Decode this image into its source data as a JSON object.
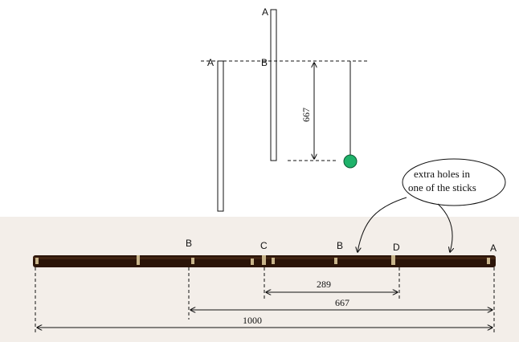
{
  "top_labels": {
    "a_top": "A",
    "a_left": "A",
    "b_mid": "B"
  },
  "dimension_vertical": "667",
  "callout": {
    "line1": "extra holes in",
    "line2": "one of the sticks"
  },
  "stick_labels": {
    "b1": "B",
    "c": "C",
    "b2": "B",
    "d": "D",
    "a": "A"
  },
  "dimensions": {
    "d289": "289",
    "d667": "667",
    "d1000": "1000"
  },
  "colors": {
    "bob": "#1fb26a",
    "stick": "#2b1408",
    "photo_bg": "#f3eee9"
  }
}
